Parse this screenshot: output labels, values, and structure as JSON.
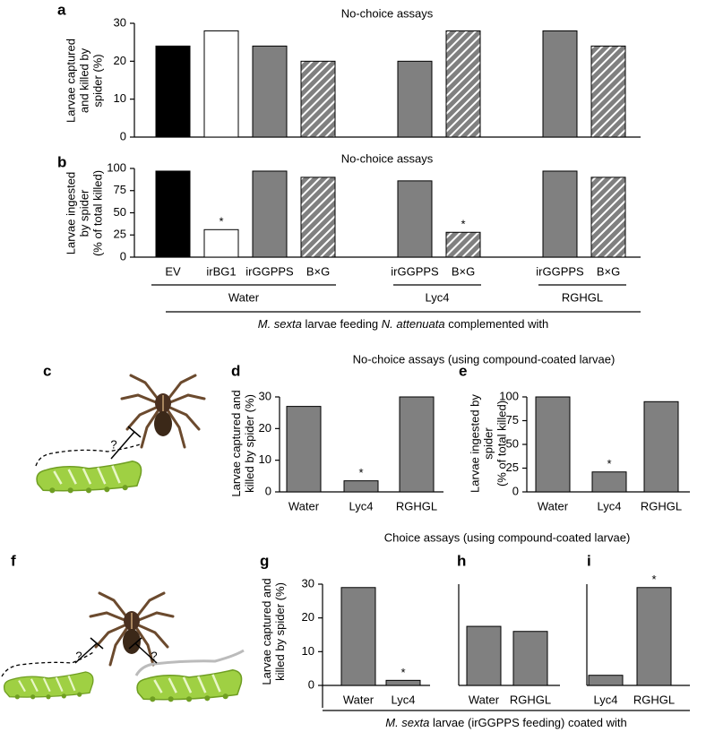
{
  "chart_data": [
    {
      "panel": "a",
      "type": "bar",
      "title": "No-choice assays",
      "ylabel": [
        "Larvae captured",
        "and killed by",
        "spider (%)"
      ],
      "values": [
        24,
        28,
        24,
        20,
        20,
        28,
        28,
        24
      ],
      "colors": [
        "#000000",
        "#ffffff",
        "#808080",
        "#808080",
        "#808080",
        "#808080",
        "#808080",
        "#808080"
      ],
      "hatched": [
        false,
        false,
        false,
        true,
        false,
        true,
        false,
        true
      ],
      "ylim": [
        0,
        30
      ],
      "yticks": [
        0,
        10,
        20,
        30
      ]
    },
    {
      "panel": "b",
      "type": "bar",
      "title": "No-choice assays",
      "ylabel": [
        "Larvae ingested",
        "by spider",
        "(% of total killed)"
      ],
      "categories": [
        "EV",
        "irBG1",
        "irGGPPS",
        "B×G",
        "irGGPPS",
        "B×G",
        "irGGPPS",
        "B×G"
      ],
      "values": [
        97,
        31,
        97,
        90,
        86,
        28,
        97,
        90
      ],
      "significance": [
        null,
        "*",
        null,
        null,
        null,
        "*",
        null,
        null
      ],
      "colors": [
        "#000000",
        "#ffffff",
        "#808080",
        "#808080",
        "#808080",
        "#808080",
        "#808080",
        "#808080"
      ],
      "hatched": [
        false,
        false,
        false,
        true,
        false,
        true,
        false,
        true
      ],
      "ylim": [
        0,
        100
      ],
      "yticks": [
        0,
        25,
        50,
        75,
        100
      ],
      "groups": [
        {
          "name": "Water",
          "size": 4
        },
        {
          "name": "Lyc4",
          "size": 2
        },
        {
          "name": "RGHGL",
          "size": 2
        }
      ],
      "xlabel": [
        {
          "text": "M. sexta",
          "italic": true
        },
        {
          "text": " larvae feeding ",
          "italic": false
        },
        {
          "text": "N. attenuata",
          "italic": true
        },
        {
          "text": " complemented with",
          "italic": false
        }
      ]
    },
    {
      "panel": "d",
      "type": "bar",
      "title": "No-choice assays (using compound-coated larvae)",
      "ylabel": [
        "Larvae captured and",
        "killed by spider (%)"
      ],
      "categories": [
        "Water",
        "Lyc4",
        "RGHGL"
      ],
      "values": [
        27,
        3.5,
        30
      ],
      "significance": [
        null,
        "*",
        null
      ],
      "color": "#808080",
      "ylim": [
        0,
        30
      ],
      "yticks": [
        0,
        10,
        20,
        30
      ]
    },
    {
      "panel": "e",
      "type": "bar",
      "ylabel": [
        "Larvae ingested by",
        "spider",
        "(% of total killed)"
      ],
      "categories": [
        "Water",
        "Lyc4",
        "RGHGL"
      ],
      "values": [
        100,
        21,
        95
      ],
      "significance": [
        null,
        "*",
        null
      ],
      "color": "#808080",
      "ylim": [
        0,
        100
      ],
      "yticks": [
        0,
        25,
        50,
        75,
        100
      ]
    },
    {
      "panel": "g",
      "type": "bar",
      "title": "Choice assays (using compound-coated larvae)",
      "ylabel": [
        "Larvae captured and",
        "killed by spider (%)"
      ],
      "categories": [
        "Water",
        "Lyc4"
      ],
      "values": [
        29,
        1.5
      ],
      "significance": [
        null,
        "*"
      ],
      "color": "#808080",
      "ylim": [
        0,
        30
      ],
      "yticks": [
        0,
        10,
        20,
        30
      ],
      "xlabel": [
        {
          "text": "M. sexta",
          "italic": true
        },
        {
          "text": " larvae (irGGPPS feeding) coated with",
          "italic": false
        }
      ]
    },
    {
      "panel": "h",
      "type": "bar",
      "categories": [
        "Water",
        "RGHGL"
      ],
      "values": [
        17.5,
        16
      ],
      "color": "#808080",
      "ylim": [
        0,
        30
      ]
    },
    {
      "panel": "i",
      "type": "bar",
      "categories": [
        "Lyc4",
        "RGHGL"
      ],
      "values": [
        3,
        29
      ],
      "significance": [
        null,
        "*"
      ],
      "color": "#808080",
      "ylim": [
        0,
        30
      ]
    }
  ],
  "illustrations": [
    {
      "panel": "c",
      "labels": [
        "?"
      ]
    },
    {
      "panel": "f",
      "labels": [
        "?",
        "?"
      ]
    }
  ]
}
